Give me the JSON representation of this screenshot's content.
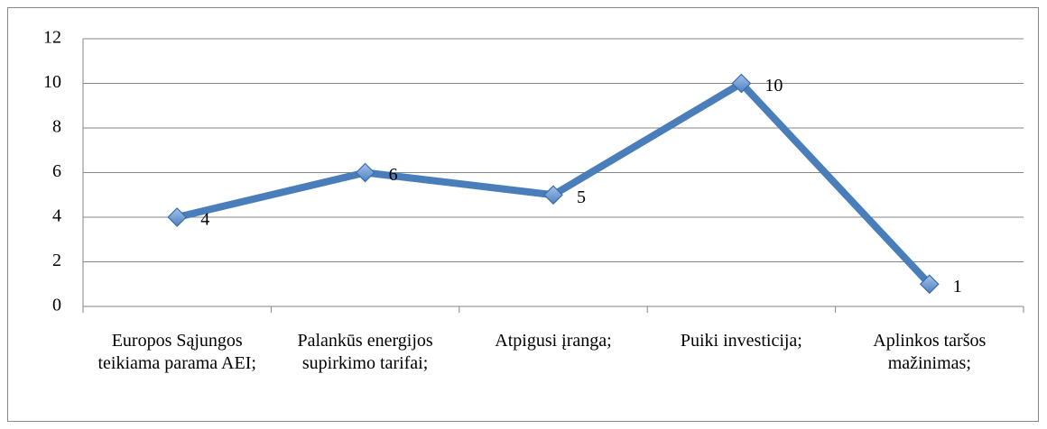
{
  "chart_data": {
    "type": "line",
    "categories": [
      "Europos Sąjungos teikiama parama AEI;",
      "Palankūs energijos supirkimo tarifai;",
      "Atpigusi įranga;",
      "Puiki investicija;",
      "Aplinkos taršos mažinimas;"
    ],
    "series": [
      {
        "color": "#4a7ebb",
        "values": [
          4,
          6,
          5,
          10,
          1
        ]
      }
    ],
    "ylim": [
      0,
      12
    ],
    "yticks": [
      0,
      2,
      4,
      6,
      8,
      10,
      12
    ],
    "grid": true,
    "data_labels": true
  }
}
